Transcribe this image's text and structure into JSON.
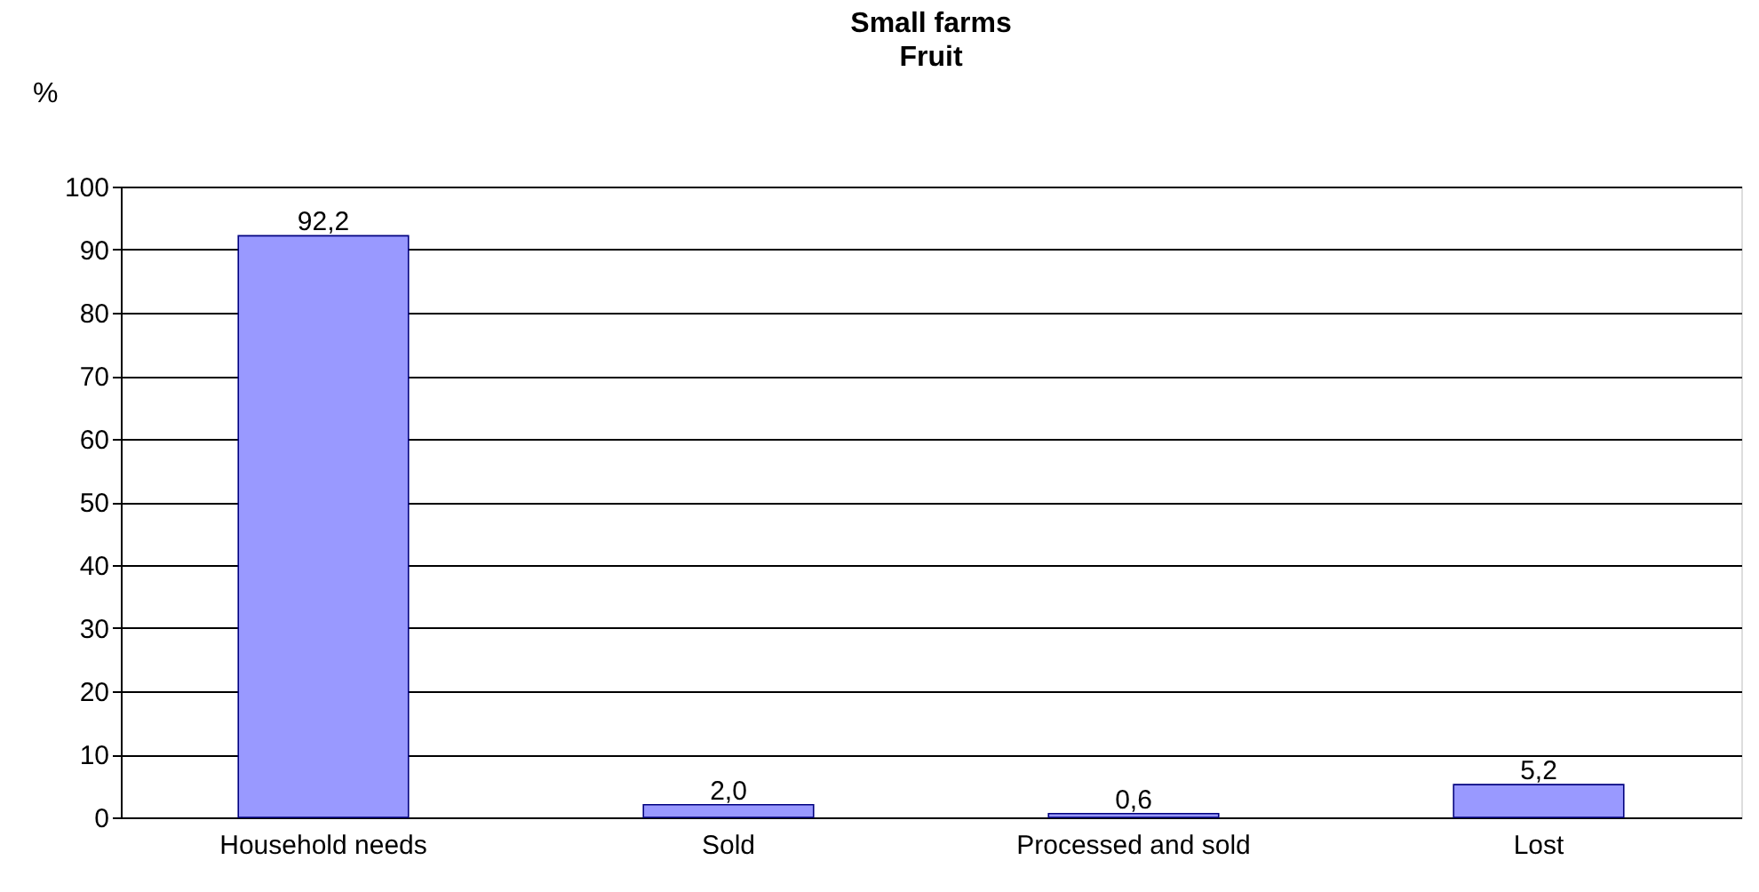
{
  "chart_data": {
    "type": "bar",
    "title": "Small farms",
    "subtitle": "Fruit",
    "ylabel": "%",
    "categories": [
      "Household needs",
      "Sold",
      "Processed and sold",
      "Lost"
    ],
    "values": [
      92.2,
      2.0,
      0.6,
      5.2
    ],
    "value_labels": [
      "92,2",
      "2,0",
      "0,6",
      "5,2"
    ],
    "color": "#9999ff",
    "ylim": [
      0,
      100
    ],
    "yticks": [
      0,
      10,
      20,
      30,
      40,
      50,
      60,
      70,
      80,
      90,
      100
    ],
    "grid": "y"
  }
}
